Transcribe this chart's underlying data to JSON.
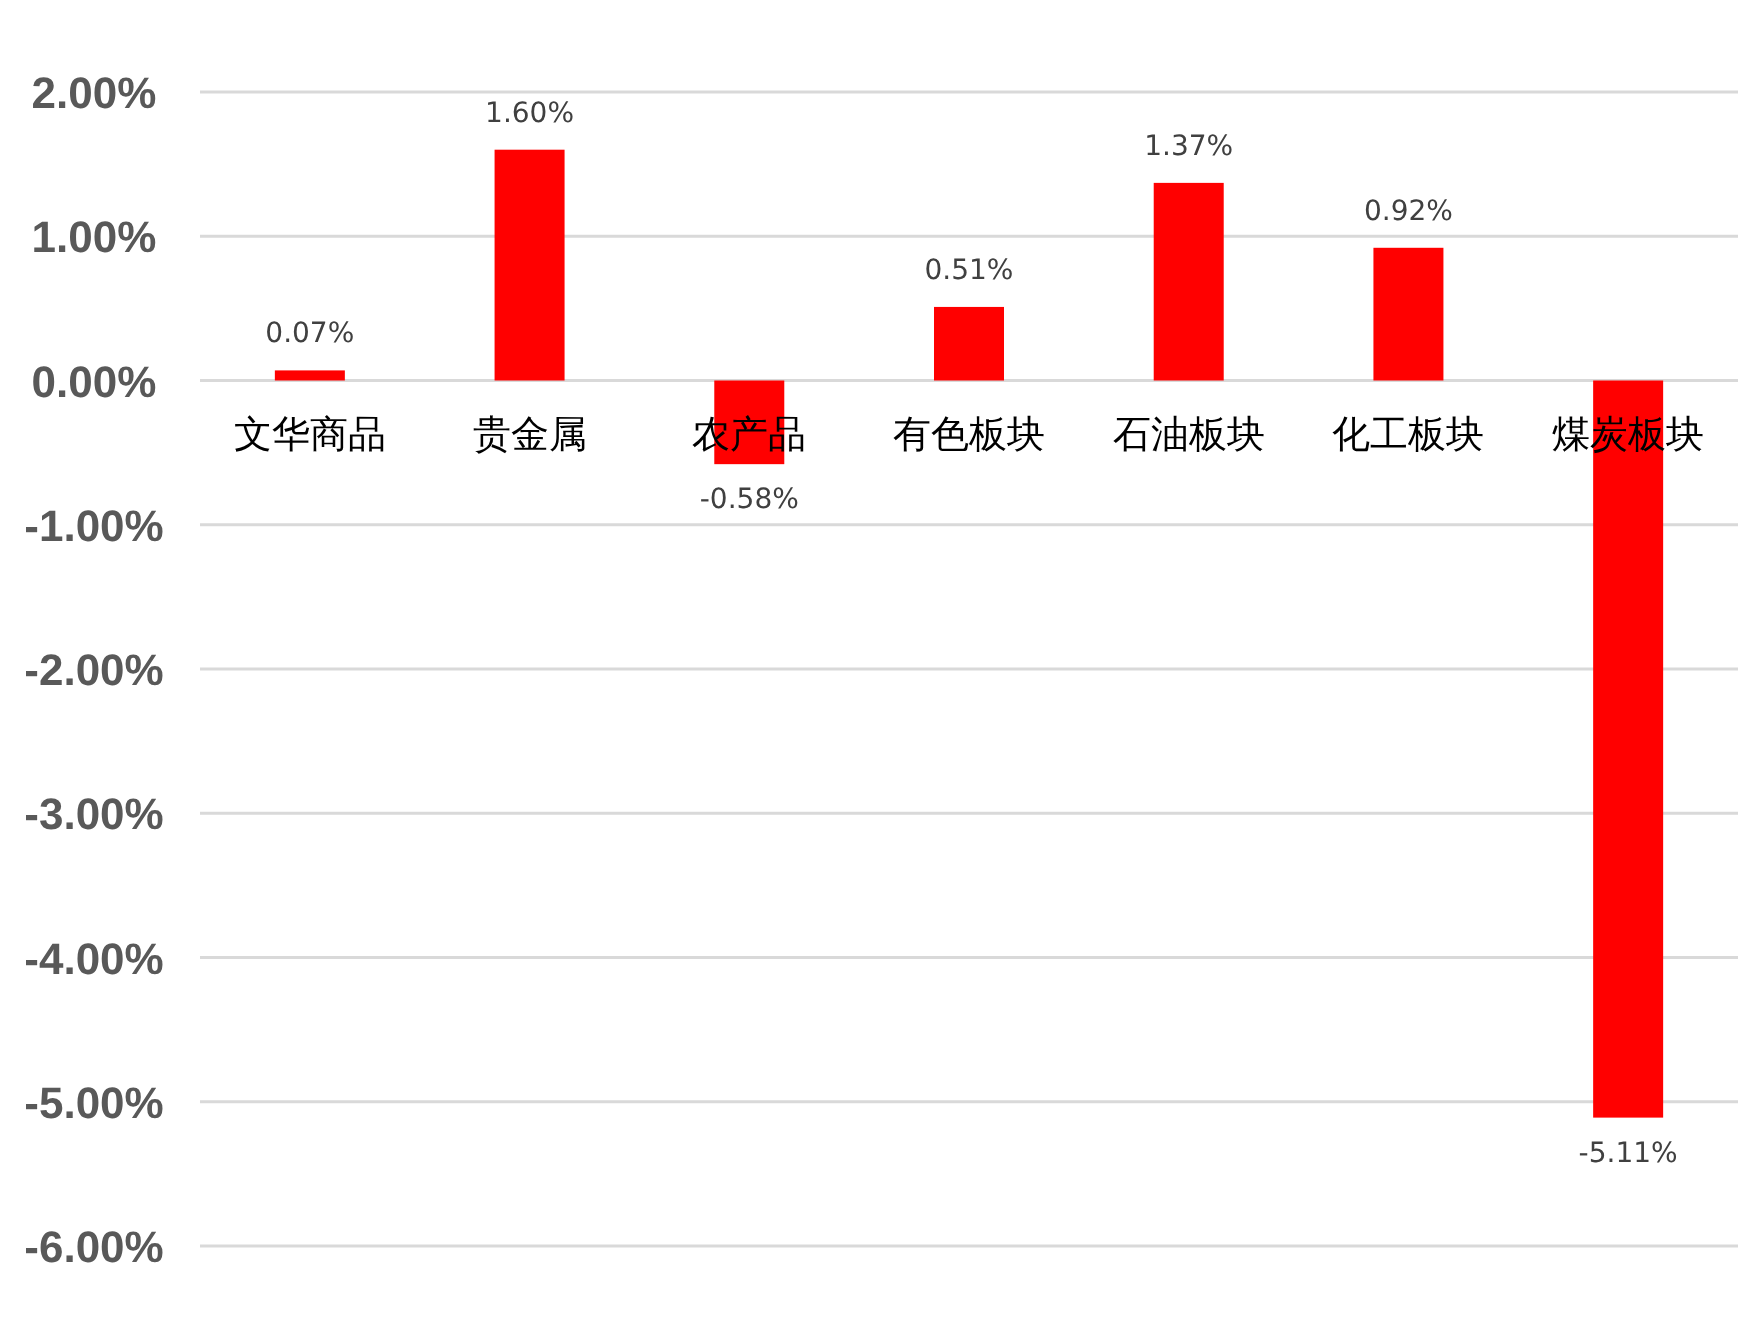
{
  "chart_data": {
    "type": "bar",
    "categories": [
      "文华商品",
      "贵金属",
      "农产品",
      "有色板块",
      "石油板块",
      "化工板块",
      "煤炭板块"
    ],
    "values": [
      0.07,
      1.6,
      -0.58,
      0.51,
      1.37,
      0.92,
      -5.11
    ],
    "value_labels": [
      "0.07%",
      "1.60%",
      "-0.58%",
      "0.51%",
      "1.37%",
      "0.92%",
      "-5.11%"
    ],
    "color": "#ff0000",
    "ylim": [
      -6,
      2
    ],
    "yticks": [
      {
        "value": 2,
        "label": "2.00%"
      },
      {
        "value": 1,
        "label": "1.00%"
      },
      {
        "value": 0,
        "label": "0.00%"
      },
      {
        "value": -1,
        "label": "-1.00%"
      },
      {
        "value": -2,
        "label": "-2.00%"
      },
      {
        "value": -3,
        "label": "-3.00%"
      },
      {
        "value": -4,
        "label": "-4.00%"
      },
      {
        "value": -5,
        "label": "-5.00%"
      },
      {
        "value": -6,
        "label": "-6.00%"
      }
    ],
    "grid": "y"
  }
}
